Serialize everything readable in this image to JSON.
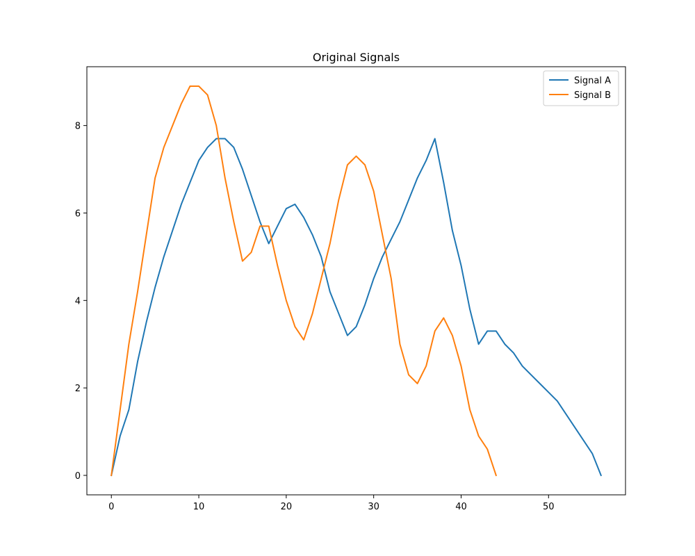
{
  "chart_data": {
    "type": "line",
    "title": "Original Signals",
    "xlabel": "",
    "ylabel": "",
    "xlim": [
      -2.8,
      58.8
    ],
    "ylim": [
      -0.445,
      9.345
    ],
    "xticks": [
      0,
      10,
      20,
      30,
      40,
      50
    ],
    "yticks": [
      0,
      2,
      4,
      6,
      8
    ],
    "grid": false,
    "legend_position": "top-right",
    "series": [
      {
        "name": "Signal A",
        "color": "#1f77b4",
        "x": [
          0,
          1,
          2,
          3,
          4,
          5,
          6,
          7,
          8,
          9,
          10,
          11,
          12,
          13,
          14,
          15,
          16,
          17,
          18,
          19,
          20,
          21,
          22,
          23,
          24,
          25,
          26,
          27,
          28,
          29,
          30,
          31,
          32,
          33,
          34,
          35,
          36,
          37,
          38,
          39,
          40,
          41,
          42,
          43,
          44,
          45,
          46,
          47,
          48,
          49,
          50,
          51,
          52,
          53,
          54,
          55,
          56
        ],
        "y": [
          0,
          0.9,
          1.5,
          2.6,
          3.5,
          4.3,
          5.0,
          5.6,
          6.2,
          6.7,
          7.2,
          7.5,
          7.7,
          7.7,
          7.5,
          7.0,
          6.4,
          5.8,
          5.3,
          5.7,
          6.1,
          6.2,
          5.9,
          5.5,
          5.0,
          4.2,
          3.7,
          3.2,
          3.4,
          3.9,
          4.5,
          5.0,
          5.4,
          5.8,
          6.3,
          6.8,
          7.2,
          7.7,
          6.7,
          5.6,
          4.8,
          3.8,
          3.0,
          3.3,
          3.3,
          3.0,
          2.8,
          2.5,
          2.3,
          2.1,
          1.9,
          1.7,
          1.4,
          1.1,
          0.8,
          0.5,
          0
        ]
      },
      {
        "name": "Signal B",
        "color": "#ff7f0e",
        "x": [
          0,
          1,
          2,
          3,
          4,
          5,
          6,
          7,
          8,
          9,
          10,
          11,
          12,
          13,
          14,
          15,
          16,
          17,
          18,
          19,
          20,
          21,
          22,
          23,
          24,
          25,
          26,
          27,
          28,
          29,
          30,
          31,
          32,
          33,
          34,
          35,
          36,
          37,
          38,
          39,
          40,
          41,
          42,
          43,
          44
        ],
        "y": [
          0,
          1.5,
          3.0,
          4.2,
          5.5,
          6.8,
          7.5,
          8.0,
          8.5,
          8.9,
          8.9,
          8.7,
          8.0,
          6.8,
          5.8,
          4.9,
          5.1,
          5.7,
          5.7,
          4.8,
          4.0,
          3.4,
          3.1,
          3.7,
          4.5,
          5.3,
          6.3,
          7.1,
          7.3,
          7.1,
          6.5,
          5.5,
          4.5,
          3.0,
          2.3,
          2.1,
          2.5,
          3.3,
          3.6,
          3.2,
          2.5,
          1.5,
          0.9,
          0.6,
          0
        ]
      }
    ]
  }
}
